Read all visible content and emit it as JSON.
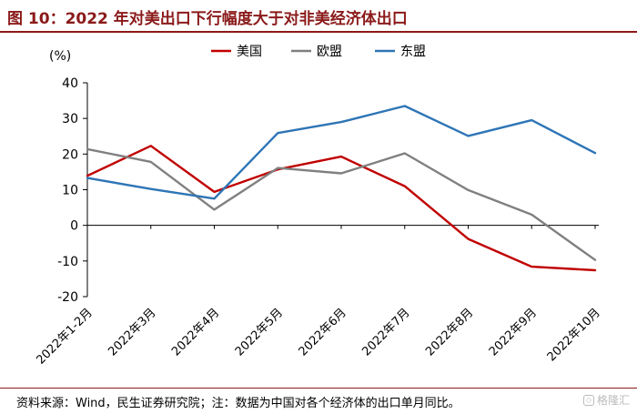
{
  "header": {
    "title": "图 10：2022 年对美出口下行幅度大于对非美经济体出口"
  },
  "footer": {
    "note": "资料来源：Wind，民生证券研究院；注：数据为中国对各个经济体的出口单月同比。",
    "watermark": "格隆汇"
  },
  "chart_data": {
    "type": "line",
    "ylabel": "(%)",
    "ylim": [
      -20,
      40
    ],
    "yticks": [
      40,
      30,
      20,
      10,
      0,
      -10,
      -20
    ],
    "ytick_labels": [
      "40",
      "30",
      "20",
      "10",
      "0",
      "-10",
      "-20"
    ],
    "grid": false,
    "legend_position": "top",
    "categories": [
      "2022年1-2月",
      "2022年3月",
      "2022年4月",
      "2022年5月",
      "2022年6月",
      "2022年7月",
      "2022年8月",
      "2022年9月",
      "2022年10月"
    ],
    "series": [
      {
        "name": "美国",
        "color": "#c00000",
        "values": [
          13.9,
          22.3,
          9.4,
          15.7,
          19.3,
          11.0,
          -3.8,
          -11.6,
          -12.6
        ]
      },
      {
        "name": "欧盟",
        "color": "#808080",
        "values": [
          21.4,
          17.8,
          4.4,
          16.1,
          14.6,
          20.2,
          9.9,
          3.0,
          -9.7
        ]
      },
      {
        "name": "东盟",
        "color": "#2e75b6",
        "values": [
          13.3,
          10.2,
          7.5,
          25.9,
          29.0,
          33.5,
          25.1,
          29.5,
          20.3
        ]
      }
    ]
  }
}
